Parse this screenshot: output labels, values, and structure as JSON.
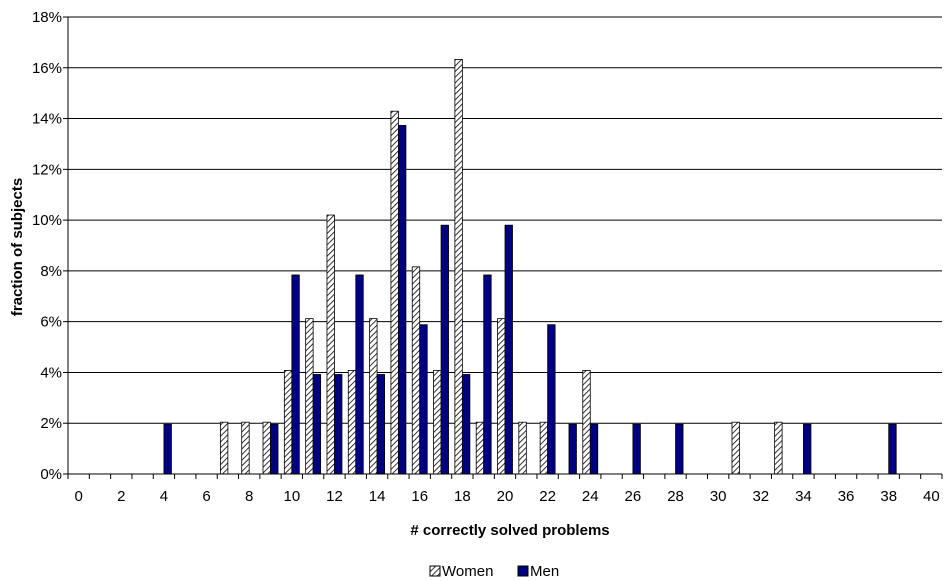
{
  "chart_data": {
    "type": "bar",
    "xlabel": "# correctly solved problems",
    "ylabel": "fraction of subjects",
    "xlim": [
      0,
      40
    ],
    "ylim": [
      0,
      18
    ],
    "x_ticks": [
      "0",
      "2",
      "4",
      "6",
      "8",
      "10",
      "12",
      "14",
      "16",
      "18",
      "20",
      "22",
      "24",
      "26",
      "28",
      "30",
      "32",
      "34",
      "36",
      "38",
      "40"
    ],
    "y_ticks": [
      "0%",
      "2%",
      "4%",
      "6%",
      "8%",
      "10%",
      "12%",
      "14%",
      "16%",
      "18%"
    ],
    "grid": "horizontal",
    "legend_position": "bottom",
    "colors": {
      "women": "#ffffff",
      "men": "#000080",
      "grid": "#000000"
    },
    "series": [
      {
        "name": "Women",
        "pattern": "diagonal-hatch",
        "points": [
          [
            7,
            2.04
          ],
          [
            8,
            2.04
          ],
          [
            9,
            2.04
          ],
          [
            10,
            4.08
          ],
          [
            11,
            6.12
          ],
          [
            12,
            10.2
          ],
          [
            13,
            4.08
          ],
          [
            14,
            6.12
          ],
          [
            15,
            14.29
          ],
          [
            16,
            8.16
          ],
          [
            17,
            4.08
          ],
          [
            18,
            16.33
          ],
          [
            19,
            2.04
          ],
          [
            20,
            6.12
          ],
          [
            21,
            2.04
          ],
          [
            22,
            2.04
          ],
          [
            24,
            4.08
          ],
          [
            31,
            2.04
          ],
          [
            33,
            2.04
          ]
        ]
      },
      {
        "name": "Men",
        "pattern": "solid",
        "points": [
          [
            4,
            1.96
          ],
          [
            9,
            1.96
          ],
          [
            10,
            7.84
          ],
          [
            11,
            3.92
          ],
          [
            12,
            3.92
          ],
          [
            13,
            7.84
          ],
          [
            14,
            3.92
          ],
          [
            15,
            13.73
          ],
          [
            16,
            5.88
          ],
          [
            17,
            9.8
          ],
          [
            18,
            3.92
          ],
          [
            19,
            7.84
          ],
          [
            20,
            9.8
          ],
          [
            22,
            5.88
          ],
          [
            23,
            1.96
          ],
          [
            24,
            1.96
          ],
          [
            26,
            1.96
          ],
          [
            28,
            1.96
          ],
          [
            34,
            1.96
          ],
          [
            38,
            1.96
          ]
        ]
      }
    ]
  }
}
